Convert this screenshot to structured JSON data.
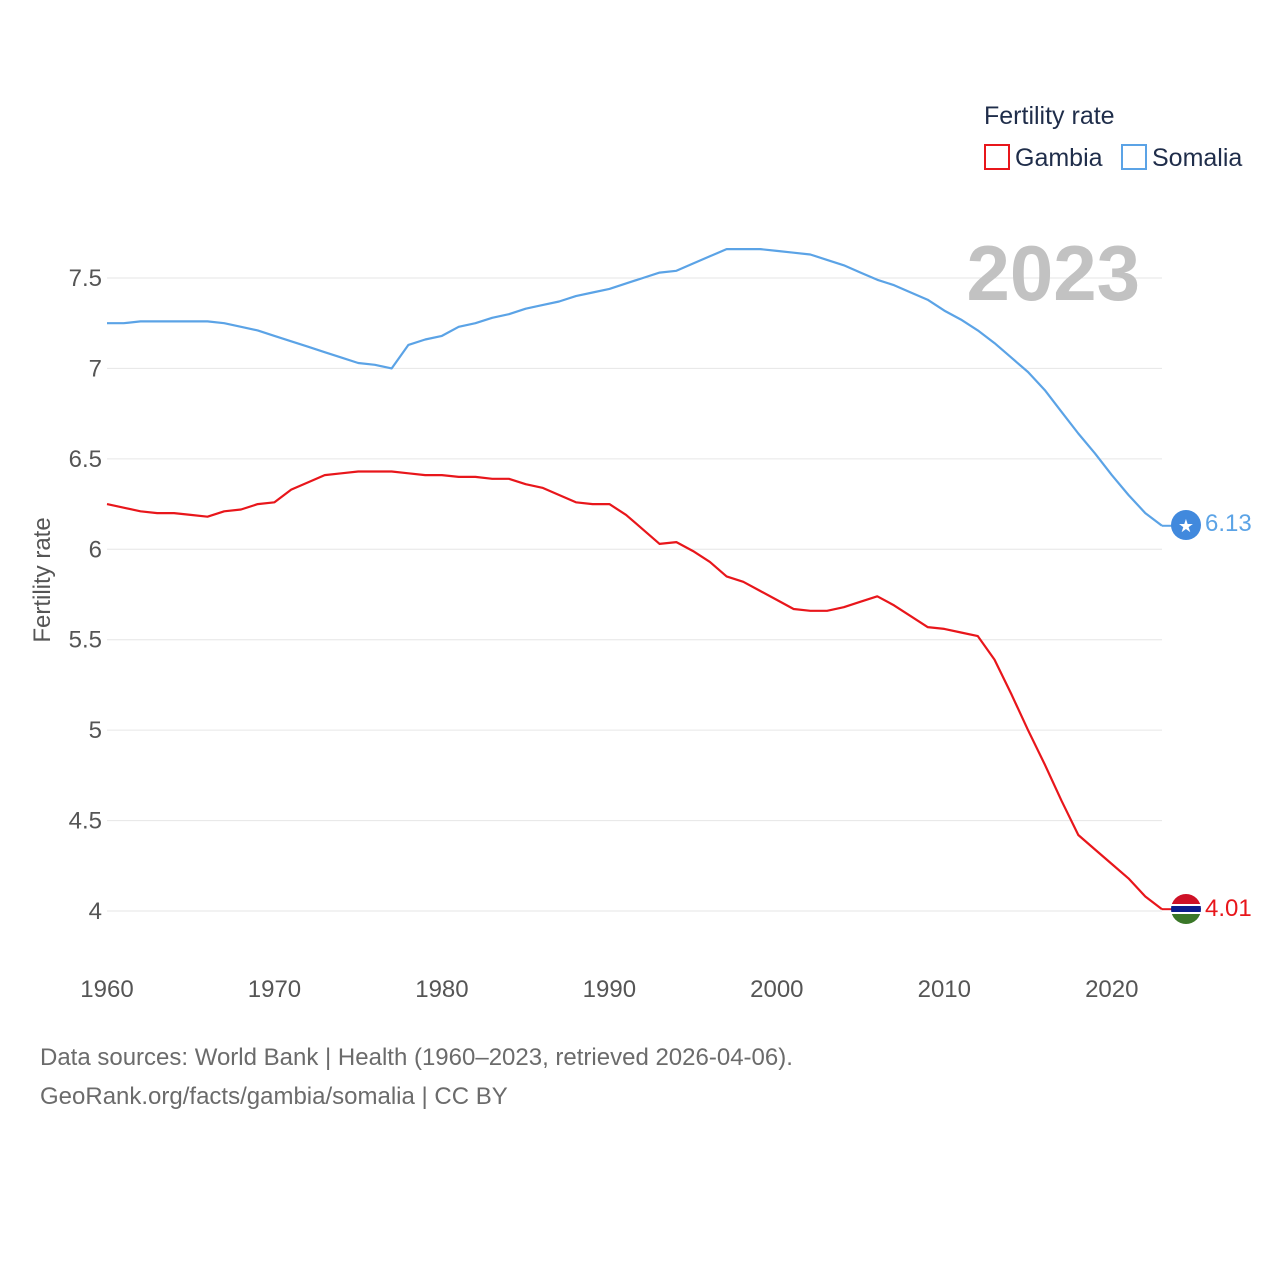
{
  "chart_data": {
    "type": "line",
    "title": "",
    "legend_title": "Fertility rate",
    "legend_position": "top-right",
    "ylabel": "Fertility rate",
    "xlabel": "",
    "current_year": "2023",
    "xlim": [
      1960,
      2023
    ],
    "ylim": [
      3.85,
      7.85
    ],
    "yticks": [
      4,
      4.5,
      5,
      5.5,
      6,
      6.5,
      7,
      7.5
    ],
    "ytick_labels": [
      "4",
      "4.5",
      "5",
      "5.5",
      "6",
      "6.5",
      "7",
      "7.5"
    ],
    "xticks": [
      1960,
      1970,
      1980,
      1990,
      2000,
      2010,
      2020
    ],
    "xtick_labels": [
      "1960",
      "1970",
      "1980",
      "1990",
      "2000",
      "2010",
      "2020"
    ],
    "grid": true,
    "x": [
      1960,
      1961,
      1962,
      1963,
      1964,
      1965,
      1966,
      1967,
      1968,
      1969,
      1970,
      1971,
      1972,
      1973,
      1974,
      1975,
      1976,
      1977,
      1978,
      1979,
      1980,
      1981,
      1982,
      1983,
      1984,
      1985,
      1986,
      1987,
      1988,
      1989,
      1990,
      1991,
      1992,
      1993,
      1994,
      1995,
      1996,
      1997,
      1998,
      1999,
      2000,
      2001,
      2002,
      2003,
      2004,
      2005,
      2006,
      2007,
      2008,
      2009,
      2010,
      2011,
      2012,
      2013,
      2014,
      2015,
      2016,
      2017,
      2018,
      2019,
      2020,
      2021,
      2022,
      2023
    ],
    "series": [
      {
        "name": "Gambia",
        "color": "#e8161b",
        "end_label": "4.01",
        "flag": "gambia-flag",
        "values": [
          6.25,
          6.23,
          6.21,
          6.2,
          6.2,
          6.19,
          6.18,
          6.21,
          6.22,
          6.25,
          6.26,
          6.33,
          6.37,
          6.41,
          6.42,
          6.43,
          6.43,
          6.43,
          6.42,
          6.41,
          6.41,
          6.4,
          6.4,
          6.39,
          6.39,
          6.36,
          6.34,
          6.3,
          6.26,
          6.25,
          6.25,
          6.19,
          6.11,
          6.03,
          6.04,
          5.99,
          5.93,
          5.85,
          5.82,
          5.77,
          5.72,
          5.67,
          5.66,
          5.66,
          5.68,
          5.71,
          5.74,
          5.69,
          5.63,
          5.57,
          5.56,
          5.54,
          5.52,
          5.39,
          5.2,
          5.0,
          4.81,
          4.61,
          4.42,
          4.34,
          4.26,
          4.18,
          4.08,
          4.01
        ]
      },
      {
        "name": "Somalia",
        "color": "#5ba3e6",
        "end_label": "6.13",
        "flag": "somalia-flag",
        "values": [
          7.25,
          7.25,
          7.26,
          7.26,
          7.26,
          7.26,
          7.26,
          7.25,
          7.23,
          7.21,
          7.18,
          7.15,
          7.12,
          7.09,
          7.06,
          7.03,
          7.02,
          7.0,
          7.13,
          7.16,
          7.18,
          7.23,
          7.25,
          7.28,
          7.3,
          7.33,
          7.35,
          7.37,
          7.4,
          7.42,
          7.44,
          7.47,
          7.5,
          7.53,
          7.54,
          7.58,
          7.62,
          7.66,
          7.66,
          7.66,
          7.65,
          7.64,
          7.63,
          7.6,
          7.57,
          7.53,
          7.49,
          7.46,
          7.42,
          7.38,
          7.32,
          7.27,
          7.21,
          7.14,
          7.06,
          6.98,
          6.88,
          6.76,
          6.64,
          6.53,
          6.41,
          6.3,
          6.2,
          6.13
        ]
      }
    ]
  },
  "footer": {
    "line1": "Data sources: World Bank | Health (1960–2023, retrieved 2026-04-06).",
    "line2": "GeoRank.org/facts/gambia/somalia | CC BY"
  }
}
